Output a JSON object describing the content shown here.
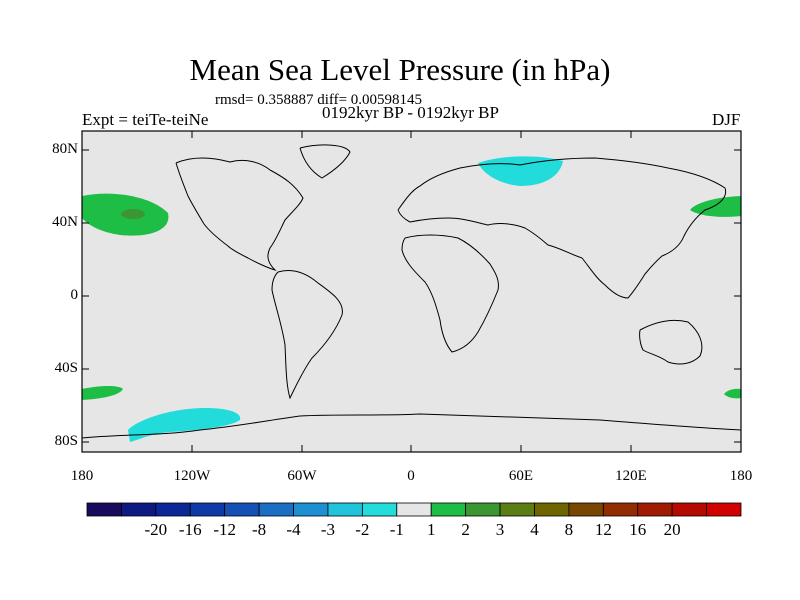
{
  "title": "Mean Sea Level Pressure (in hPa)",
  "stats": "rmsd= 0.358887 diff= 0.00598145",
  "experiment": "Expt = teiTe-teiNe",
  "period": "0192kyr BP - 0192kyr BP",
  "season": "DJF",
  "lat_labels": [
    "80N",
    "40N",
    "0",
    "40S",
    "80S"
  ],
  "lon_labels": [
    "180",
    "120W",
    "60W",
    "0",
    "60E",
    "120E",
    "180"
  ],
  "colorbar": {
    "labels": [
      "-20",
      "-16",
      "-12",
      "-8",
      "-4",
      "-3",
      "-2",
      "-1",
      "1",
      "2",
      "3",
      "4",
      "8",
      "12",
      "16",
      "20"
    ],
    "colors": [
      "#1a0a5e",
      "#0d1a82",
      "#0a2896",
      "#0d3aa6",
      "#1550b4",
      "#1a6ec3",
      "#1e8fd2",
      "#22c4dc",
      "#23dcdc",
      "#e6e6e6",
      "#1ebe46",
      "#3c9632",
      "#5a7d14",
      "#6e6400",
      "#784600",
      "#912d00",
      "#a01c00",
      "#b40a00",
      "#d20000"
    ]
  },
  "map_background": "#e6e6e6"
}
